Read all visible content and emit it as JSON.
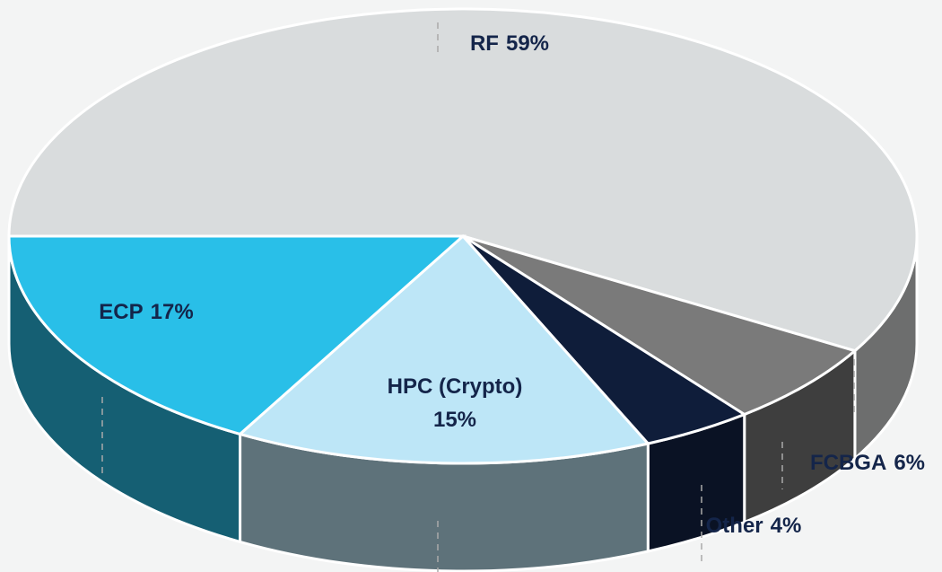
{
  "chart_data": {
    "type": "pie3d",
    "categories": [
      "RF",
      "FCBGA",
      "Other",
      "HPC (Crypto)",
      "ECP"
    ],
    "values": [
      59,
      6,
      4,
      15,
      17
    ],
    "value_labels": [
      "59%",
      "6%",
      "4%",
      "15%",
      "17%"
    ],
    "colors": [
      "#d9dcdd",
      "#7a7a7a",
      "#0f1d3a",
      "#bde6f7",
      "#29bfe8"
    ],
    "side_colors": [
      "#6d6e6e",
      "#3e3e3e",
      "#0a1224",
      "#5e727a",
      "#155f73"
    ]
  }
}
